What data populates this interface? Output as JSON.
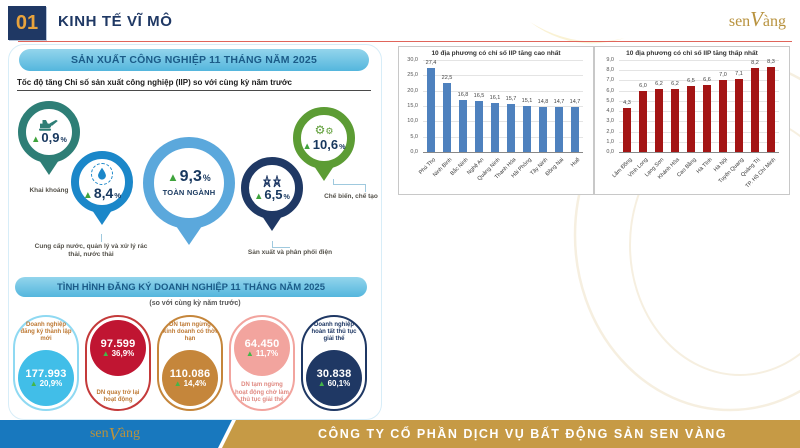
{
  "header": {
    "number": "01",
    "title": "KINH TẾ VĨ MÔ"
  },
  "brand": {
    "pre": "sen",
    "stylized": "V",
    "post": "àng"
  },
  "iip": {
    "banner": "SẢN XUẤT CÔNG NGHIỆP 11 THÁNG NĂM 2025",
    "subtitle": "Tốc độ tăng Chỉ số sản xuất công nghiệp (IIP) so với cùng kỳ năm trước",
    "sectors": [
      {
        "value": "0,9",
        "unit": "%",
        "label": "Khai khoáng",
        "color": "#2E7E76",
        "icon": "excavator-icon"
      },
      {
        "value": "8,4",
        "unit": "%",
        "label": "Cung cấp nước, quản lý và xử lý rác thải, nước thải",
        "color": "#1B87C9",
        "icon": "water-drop-icon"
      },
      {
        "value": "9,3",
        "unit": "%",
        "label": "TOÀN NGÀNH",
        "color": "#5BA8DC",
        "icon": null
      },
      {
        "value": "6,5",
        "unit": "%",
        "label": "Sản xuất và phân phối điện",
        "color": "#1F3864",
        "icon": "power-pylon-icon"
      },
      {
        "value": "10,6",
        "unit": "%",
        "label": "Chế biến, chế tạo",
        "color": "#5C9C34",
        "icon": "gears-icon"
      }
    ]
  },
  "business": {
    "banner": "TÌNH HÌNH ĐĂNG KÝ DOANH NGHIỆP 11 THÁNG  NĂM 2025",
    "subtitle": "(so với cùng kỳ năm trước)",
    "stats": [
      {
        "label": "Doanh nghiệp đăng ký thành lập mới",
        "value": "177.993",
        "change": "20,9%",
        "circle_color": "#41BEE8"
      },
      {
        "label": "DN quay trở lại hoạt động",
        "value": "97.599",
        "change": "36,9%",
        "circle_color": "#C01532"
      },
      {
        "label": "DN tạm ngừng kinh doanh có thời hạn",
        "value": "110.086",
        "change": "14,4%",
        "circle_color": "#C5863B"
      },
      {
        "label": "DN tạm ngừng hoạt động chờ làm thủ tục giải thể",
        "value": "64.450",
        "change": "11,7%",
        "circle_color": "#F2A49E"
      },
      {
        "label": "Doanh nghiệp hoàn tất thủ tục giải thể",
        "value": "30.838",
        "change": "60,1%",
        "circle_color": "#1F3864"
      }
    ]
  },
  "chart_data": [
    {
      "type": "bar",
      "title": "10 địa phương có chỉ số IIP tăng cao nhất",
      "categories": [
        "Phú Thọ",
        "Ninh Bình",
        "Bắc Ninh",
        "Nghệ An",
        "Quảng Ninh",
        "Thanh Hóa",
        "Hải Phòng",
        "Tây Ninh",
        "Đồng Nai",
        "Huế"
      ],
      "values": [
        27.4,
        22.5,
        16.8,
        16.5,
        16.1,
        15.7,
        15.1,
        14.8,
        14.7,
        14.7
      ],
      "xlabel": "",
      "ylabel": "",
      "ylim": [
        0,
        30
      ],
      "ytick_step": 5,
      "bar_color": "#4E81BE",
      "grid": true,
      "legend": "none"
    },
    {
      "type": "bar",
      "title": "10 địa phương có chỉ số IIP tăng thấp nhất",
      "categories": [
        "Lâm Đồng",
        "Vĩnh Long",
        "Lạng Sơn",
        "Khánh Hòa",
        "Cao Bằng",
        "Hà Tĩnh",
        "Hà Nội",
        "Tuyên Quang",
        "Quảng Trị",
        "TP. Hồ Chí Minh"
      ],
      "values": [
        4.3,
        6.0,
        6.2,
        6.2,
        6.5,
        6.6,
        7.0,
        7.1,
        8.2,
        8.3
      ],
      "xlabel": "",
      "ylabel": "",
      "ylim": [
        0,
        9
      ],
      "ytick_step": 1,
      "bar_color": "#A31414",
      "grid": true,
      "legend": "none"
    }
  ],
  "footer": {
    "company": "CÔNG TY CỔ PHẦN DỊCH VỤ BẤT ĐỘNG SẢN SEN VÀNG"
  },
  "colors": {
    "navy": "#1F3864",
    "gold": "#C69A45",
    "footer_blue": "#1878BE",
    "banner_blue": "#6FC4E4",
    "chart_blue": "#4E81BE",
    "chart_red": "#A31414",
    "triangle_green": "#3FA33C",
    "header_line_red": "#E0655B"
  }
}
